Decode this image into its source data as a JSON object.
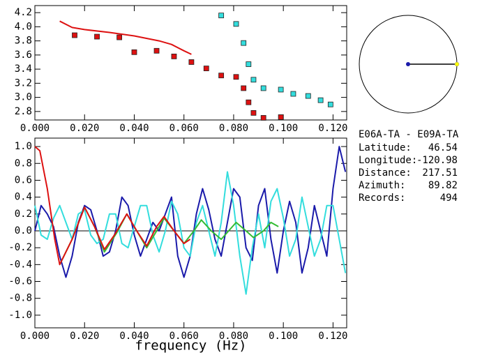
{
  "chart_data": [
    {
      "type": "scatter",
      "xlim": [
        0,
        0.1255
      ],
      "ylim": [
        2.68,
        4.3
      ],
      "xticks": [
        {
          "value": 0,
          "label": "0.000"
        },
        {
          "value": 0.02,
          "label": "0.020"
        },
        {
          "value": 0.04,
          "label": "0.040"
        },
        {
          "value": 0.06,
          "label": "0.060"
        },
        {
          "value": 0.08,
          "label": "0.080"
        },
        {
          "value": 0.1,
          "label": "0.100"
        },
        {
          "value": 0.12,
          "label": "0.120"
        }
      ],
      "yticks": [
        2.8,
        {
          "value": 3,
          "label": "3.0"
        },
        3.2,
        3.4,
        3.6,
        3.8,
        {
          "value": 4,
          "label": "4.0"
        },
        4.2
      ],
      "series": [
        {
          "style": "markers",
          "color": "#dd1111",
          "x": [
            0.016,
            0.025,
            0.034,
            0.04,
            0.049,
            0.056,
            0.063,
            0.069,
            0.075,
            0.081,
            0.084,
            0.086,
            0.088,
            0.092,
            0.099
          ],
          "values": [
            3.88,
            3.86,
            3.85,
            3.64,
            3.66,
            3.58,
            3.5,
            3.41,
            3.31,
            3.29,
            3.13,
            2.93,
            2.78,
            2.71,
            2.72
          ]
        },
        {
          "style": "markers",
          "color": "#33dddd",
          "x": [
            0.075,
            0.081,
            0.084,
            0.086,
            0.088,
            0.092,
            0.099,
            0.104,
            0.11,
            0.115,
            0.119
          ],
          "values": [
            4.16,
            4.04,
            3.77,
            3.47,
            3.25,
            3.13,
            3.11,
            3.05,
            3.02,
            2.96,
            2.9
          ]
        },
        {
          "style": "line",
          "color": "#dd1111",
          "x": [
            0.01,
            0.015,
            0.02,
            0.03,
            0.04,
            0.05,
            0.055,
            0.06,
            0.063
          ],
          "values": [
            4.08,
            3.99,
            3.96,
            3.92,
            3.87,
            3.8,
            3.75,
            3.66,
            3.61
          ]
        }
      ]
    },
    {
      "type": "line",
      "x_label": "frequency (Hz)",
      "xlim": [
        0,
        0.1255
      ],
      "ylim": [
        -1.15,
        1.1
      ],
      "xticks": [
        {
          "value": 0,
          "label": "0.000"
        },
        {
          "value": 0.02,
          "label": "0.020"
        },
        {
          "value": 0.04,
          "label": "0.040"
        },
        {
          "value": 0.06,
          "label": "0.060"
        },
        {
          "value": 0.08,
          "label": "0.080"
        },
        {
          "value": 0.1,
          "label": "0.100"
        },
        {
          "value": 0.12,
          "label": "0.120"
        }
      ],
      "yticks": [
        {
          "value": -1,
          "label": "-1.0"
        },
        -0.8,
        -0.6,
        -0.4,
        -0.2,
        {
          "value": 0,
          "label": "0.0"
        },
        0.2,
        0.4,
        0.6,
        0.8,
        {
          "value": 1,
          "label": "1.0"
        }
      ],
      "series": [
        {
          "color": "#1a1aaa",
          "x": [
            0,
            0.0025,
            0.005,
            0.0075,
            0.01,
            0.0125,
            0.015,
            0.0175,
            0.02,
            0.0225,
            0.025,
            0.0275,
            0.03,
            0.0325,
            0.035,
            0.0375,
            0.04,
            0.0425,
            0.045,
            0.0475,
            0.05,
            0.0525,
            0.055,
            0.0575,
            0.06,
            0.0625,
            0.065,
            0.0675,
            0.07,
            0.0725,
            0.075,
            0.0775,
            0.08,
            0.0825,
            0.085,
            0.0875,
            0.09,
            0.0925,
            0.095,
            0.0975,
            0.1,
            0.1025,
            0.105,
            0.1075,
            0.11,
            0.1125,
            0.115,
            0.1175,
            0.12,
            0.1225,
            0.125
          ],
          "values": [
            0.0,
            0.3,
            0.2,
            0.05,
            -0.3,
            -0.55,
            -0.3,
            0.1,
            0.3,
            0.25,
            0.0,
            -0.3,
            -0.25,
            0.0,
            0.4,
            0.3,
            -0.05,
            -0.3,
            -0.1,
            0.1,
            0.0,
            0.2,
            0.4,
            -0.3,
            -0.55,
            -0.3,
            0.2,
            0.5,
            0.25,
            -0.1,
            -0.3,
            0.1,
            0.5,
            0.4,
            -0.2,
            -0.35,
            0.3,
            0.5,
            -0.1,
            -0.5,
            0.0,
            0.35,
            0.1,
            -0.5,
            -0.2,
            0.3,
            0.0,
            -0.3,
            0.5,
            1.0,
            0.7
          ]
        },
        {
          "color": "#33dddd",
          "x": [
            0,
            0.0025,
            0.005,
            0.0075,
            0.01,
            0.0125,
            0.015,
            0.0175,
            0.02,
            0.0225,
            0.025,
            0.0275,
            0.03,
            0.0325,
            0.035,
            0.0375,
            0.04,
            0.0425,
            0.045,
            0.0475,
            0.05,
            0.0525,
            0.055,
            0.0575,
            0.06,
            0.0625,
            0.065,
            0.0675,
            0.07,
            0.0725,
            0.075,
            0.0775,
            0.08,
            0.0825,
            0.085,
            0.0875,
            0.09,
            0.0925,
            0.095,
            0.0975,
            0.1,
            0.1025,
            0.105,
            0.1075,
            0.11,
            0.1125,
            0.115,
            0.1175,
            0.12,
            0.1225,
            0.125
          ],
          "values": [
            0.3,
            -0.05,
            -0.1,
            0.15,
            0.3,
            0.1,
            -0.1,
            0.2,
            0.25,
            -0.05,
            -0.15,
            -0.1,
            0.2,
            0.2,
            -0.15,
            -0.2,
            0.05,
            0.3,
            0.3,
            -0.05,
            -0.25,
            0.0,
            0.35,
            0.2,
            -0.2,
            -0.3,
            0.1,
            0.3,
            0.0,
            -0.3,
            0.1,
            0.7,
            0.3,
            -0.3,
            -0.75,
            -0.2,
            0.2,
            -0.2,
            0.35,
            0.5,
            0.15,
            -0.3,
            -0.1,
            0.4,
            0.05,
            -0.3,
            -0.1,
            0.3,
            0.3,
            -0.1,
            -0.5
          ]
        },
        {
          "color": "#33bb33",
          "x": [
            0.01,
            0.015,
            0.02,
            0.024,
            0.028,
            0.033,
            0.037,
            0.041,
            0.045,
            0.049,
            0.052,
            0.056,
            0.06,
            0.064,
            0.067,
            0.071,
            0.075,
            0.078,
            0.081,
            0.085,
            0.088,
            0.092,
            0.095,
            0.098
          ],
          "values": [
            -0.4,
            -0.1,
            0.28,
            0.05,
            -0.25,
            -0.02,
            0.2,
            0.0,
            -0.2,
            0.0,
            0.15,
            0.0,
            -0.15,
            0.0,
            0.13,
            0.0,
            -0.1,
            0.0,
            0.1,
            0.0,
            -0.08,
            0.0,
            0.1,
            0.05
          ]
        },
        {
          "color": "#dd1111",
          "x": [
            0,
            0.002,
            0.005,
            0.008,
            0.01,
            0.015,
            0.02,
            0.024,
            0.028,
            0.032,
            0.037,
            0.041,
            0.045,
            0.049,
            0.052,
            0.056,
            0.06,
            0.0625
          ],
          "values": [
            1.0,
            0.95,
            0.5,
            -0.1,
            -0.4,
            -0.1,
            0.28,
            0.05,
            -0.22,
            -0.05,
            0.2,
            0.0,
            -0.18,
            0.05,
            0.17,
            0.0,
            -0.15,
            -0.1
          ]
        }
      ]
    }
  ],
  "info": {
    "title": "E06A-TA - E09A-TA",
    "fields": [
      {
        "label": "Latitude:",
        "value": "46.54"
      },
      {
        "label": "Longitude:",
        "value": "-120.98"
      },
      {
        "label": "Distance:",
        "value": "217.51"
      },
      {
        "label": "Azimuth:",
        "value": "89.82"
      },
      {
        "label": "Records:",
        "value": "494"
      }
    ]
  }
}
